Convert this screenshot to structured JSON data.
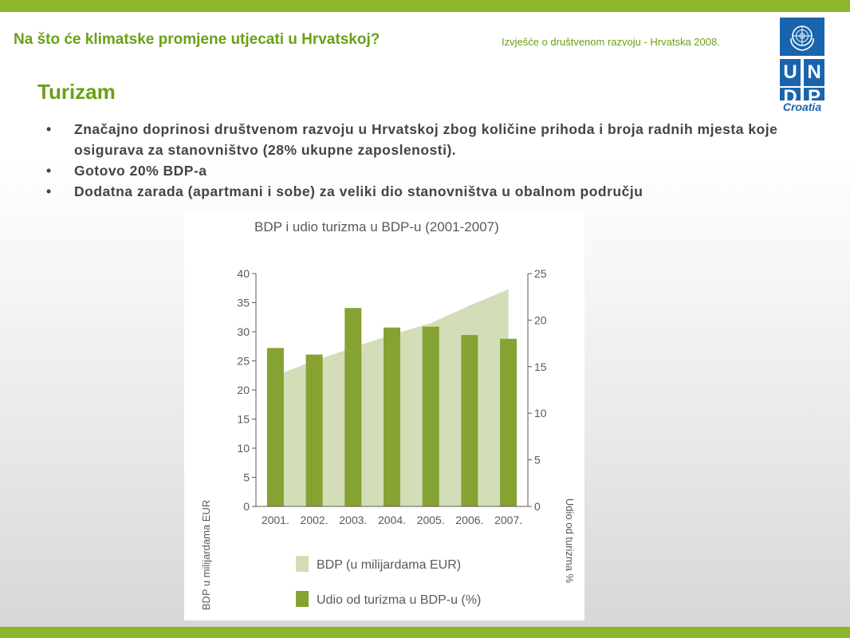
{
  "header": {
    "headline": "Na što će klimatske promjene utjecati u Hrvatskoj?",
    "report": "Izvješće o društvenom razvoju - Hrvatska 2008."
  },
  "logo": {
    "icon": "un-emblem-icon",
    "letters": [
      "U",
      "N",
      "D",
      "P"
    ],
    "country": "Croatia"
  },
  "section_title": "Turizam",
  "bullets": [
    "Značajno doprinosi društvenom razvoju u Hrvatskoj zbog količine prihoda i broja radnih mjesta koje osigurava za stanovništvo (28% ukupne zaposlenosti).",
    "Gotovo 20% BDP-a",
    "Dodatna zarada (apartmani i sobe) za veliki dio stanovništva u obalnom području"
  ],
  "colors": {
    "accent_green": "#8bb829",
    "title_green": "#6aa017",
    "undp_blue": "#1a64ad",
    "bar_green": "#86a232",
    "area_green": "#d3deb9"
  },
  "chart_data": {
    "type": "bar",
    "title": "BDP i udio turizma u BDP-u (2001-2007)",
    "categories": [
      "2001.",
      "2002.",
      "2003.",
      "2004.",
      "2005.",
      "2006.",
      "2007."
    ],
    "ylabel_left": "BDP u milijardama EUR",
    "ylabel_right": "Udio od turizma %",
    "ylim_left": [
      0,
      40
    ],
    "ylim_right": [
      0,
      25
    ],
    "yticks_left": [
      "0",
      "5",
      "10",
      "15",
      "20",
      "25",
      "30",
      "35",
      "40"
    ],
    "yticks_right": [
      "0",
      "5",
      "10",
      "15",
      "20",
      "25"
    ],
    "series": [
      {
        "name": "BDP (u milijardama EUR)",
        "type": "area",
        "axis": "left",
        "values": [
          22.5,
          25.0,
          27.3,
          29.5,
          31.5,
          34.5,
          37.3
        ]
      },
      {
        "name": "Udio od turizma u BDP-u (%)",
        "type": "bar",
        "axis": "right",
        "values": [
          17.0,
          16.3,
          21.3,
          19.2,
          19.3,
          18.4,
          18.0
        ]
      }
    ],
    "legend": "bottom",
    "grid": false
  }
}
